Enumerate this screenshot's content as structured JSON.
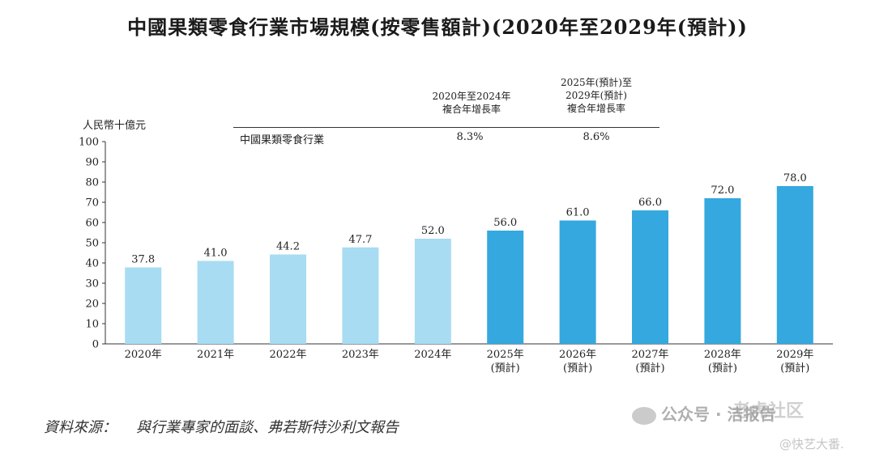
{
  "chart_data": {
    "type": "bar",
    "title": "中國果類零食行業市場規模(按零售額計)(2020年至2029年(預計))",
    "ylabel": "人民幣十億元",
    "ylim": [
      0,
      100
    ],
    "yticks": [
      0,
      10,
      20,
      30,
      40,
      50,
      60,
      70,
      80,
      90,
      100
    ],
    "categories": [
      "2020年",
      "2021年",
      "2022年",
      "2023年",
      "2024年",
      "2025年\n(預計)",
      "2026年\n(預計)",
      "2027年\n(預計)",
      "2028年\n(預計)",
      "2029年\n(預計)"
    ],
    "values": [
      37.8,
      41.0,
      44.2,
      47.7,
      52.0,
      56.0,
      61.0,
      66.0,
      72.0,
      78.0
    ],
    "value_labels": [
      "37.8",
      "41.0",
      "44.2",
      "47.7",
      "52.0",
      "56.0",
      "61.0",
      "66.0",
      "72.0",
      "78.0"
    ],
    "colors": {
      "historical": "#a8dcf2",
      "forecast": "#35a8df"
    },
    "forecast_start_index": 5,
    "grid": false
  },
  "cagr_table": {
    "col1_header": [
      "2020年至2024年",
      "複合年增長率"
    ],
    "col2_header": [
      "2025年(預計)至",
      "2029年(預計)",
      "複合年增長率"
    ],
    "row_label": "中國果類零食行業",
    "col1_value": "8.3%",
    "col2_value": "8.6%"
  },
  "source": {
    "label": "資料來源：",
    "text": "與行業專家的面談、弗若斯特沙利文報告"
  },
  "watermarks": {
    "wechat": "公众号 · 洁报告",
    "site": "老虎社区",
    "handle": "@快艺大番."
  }
}
